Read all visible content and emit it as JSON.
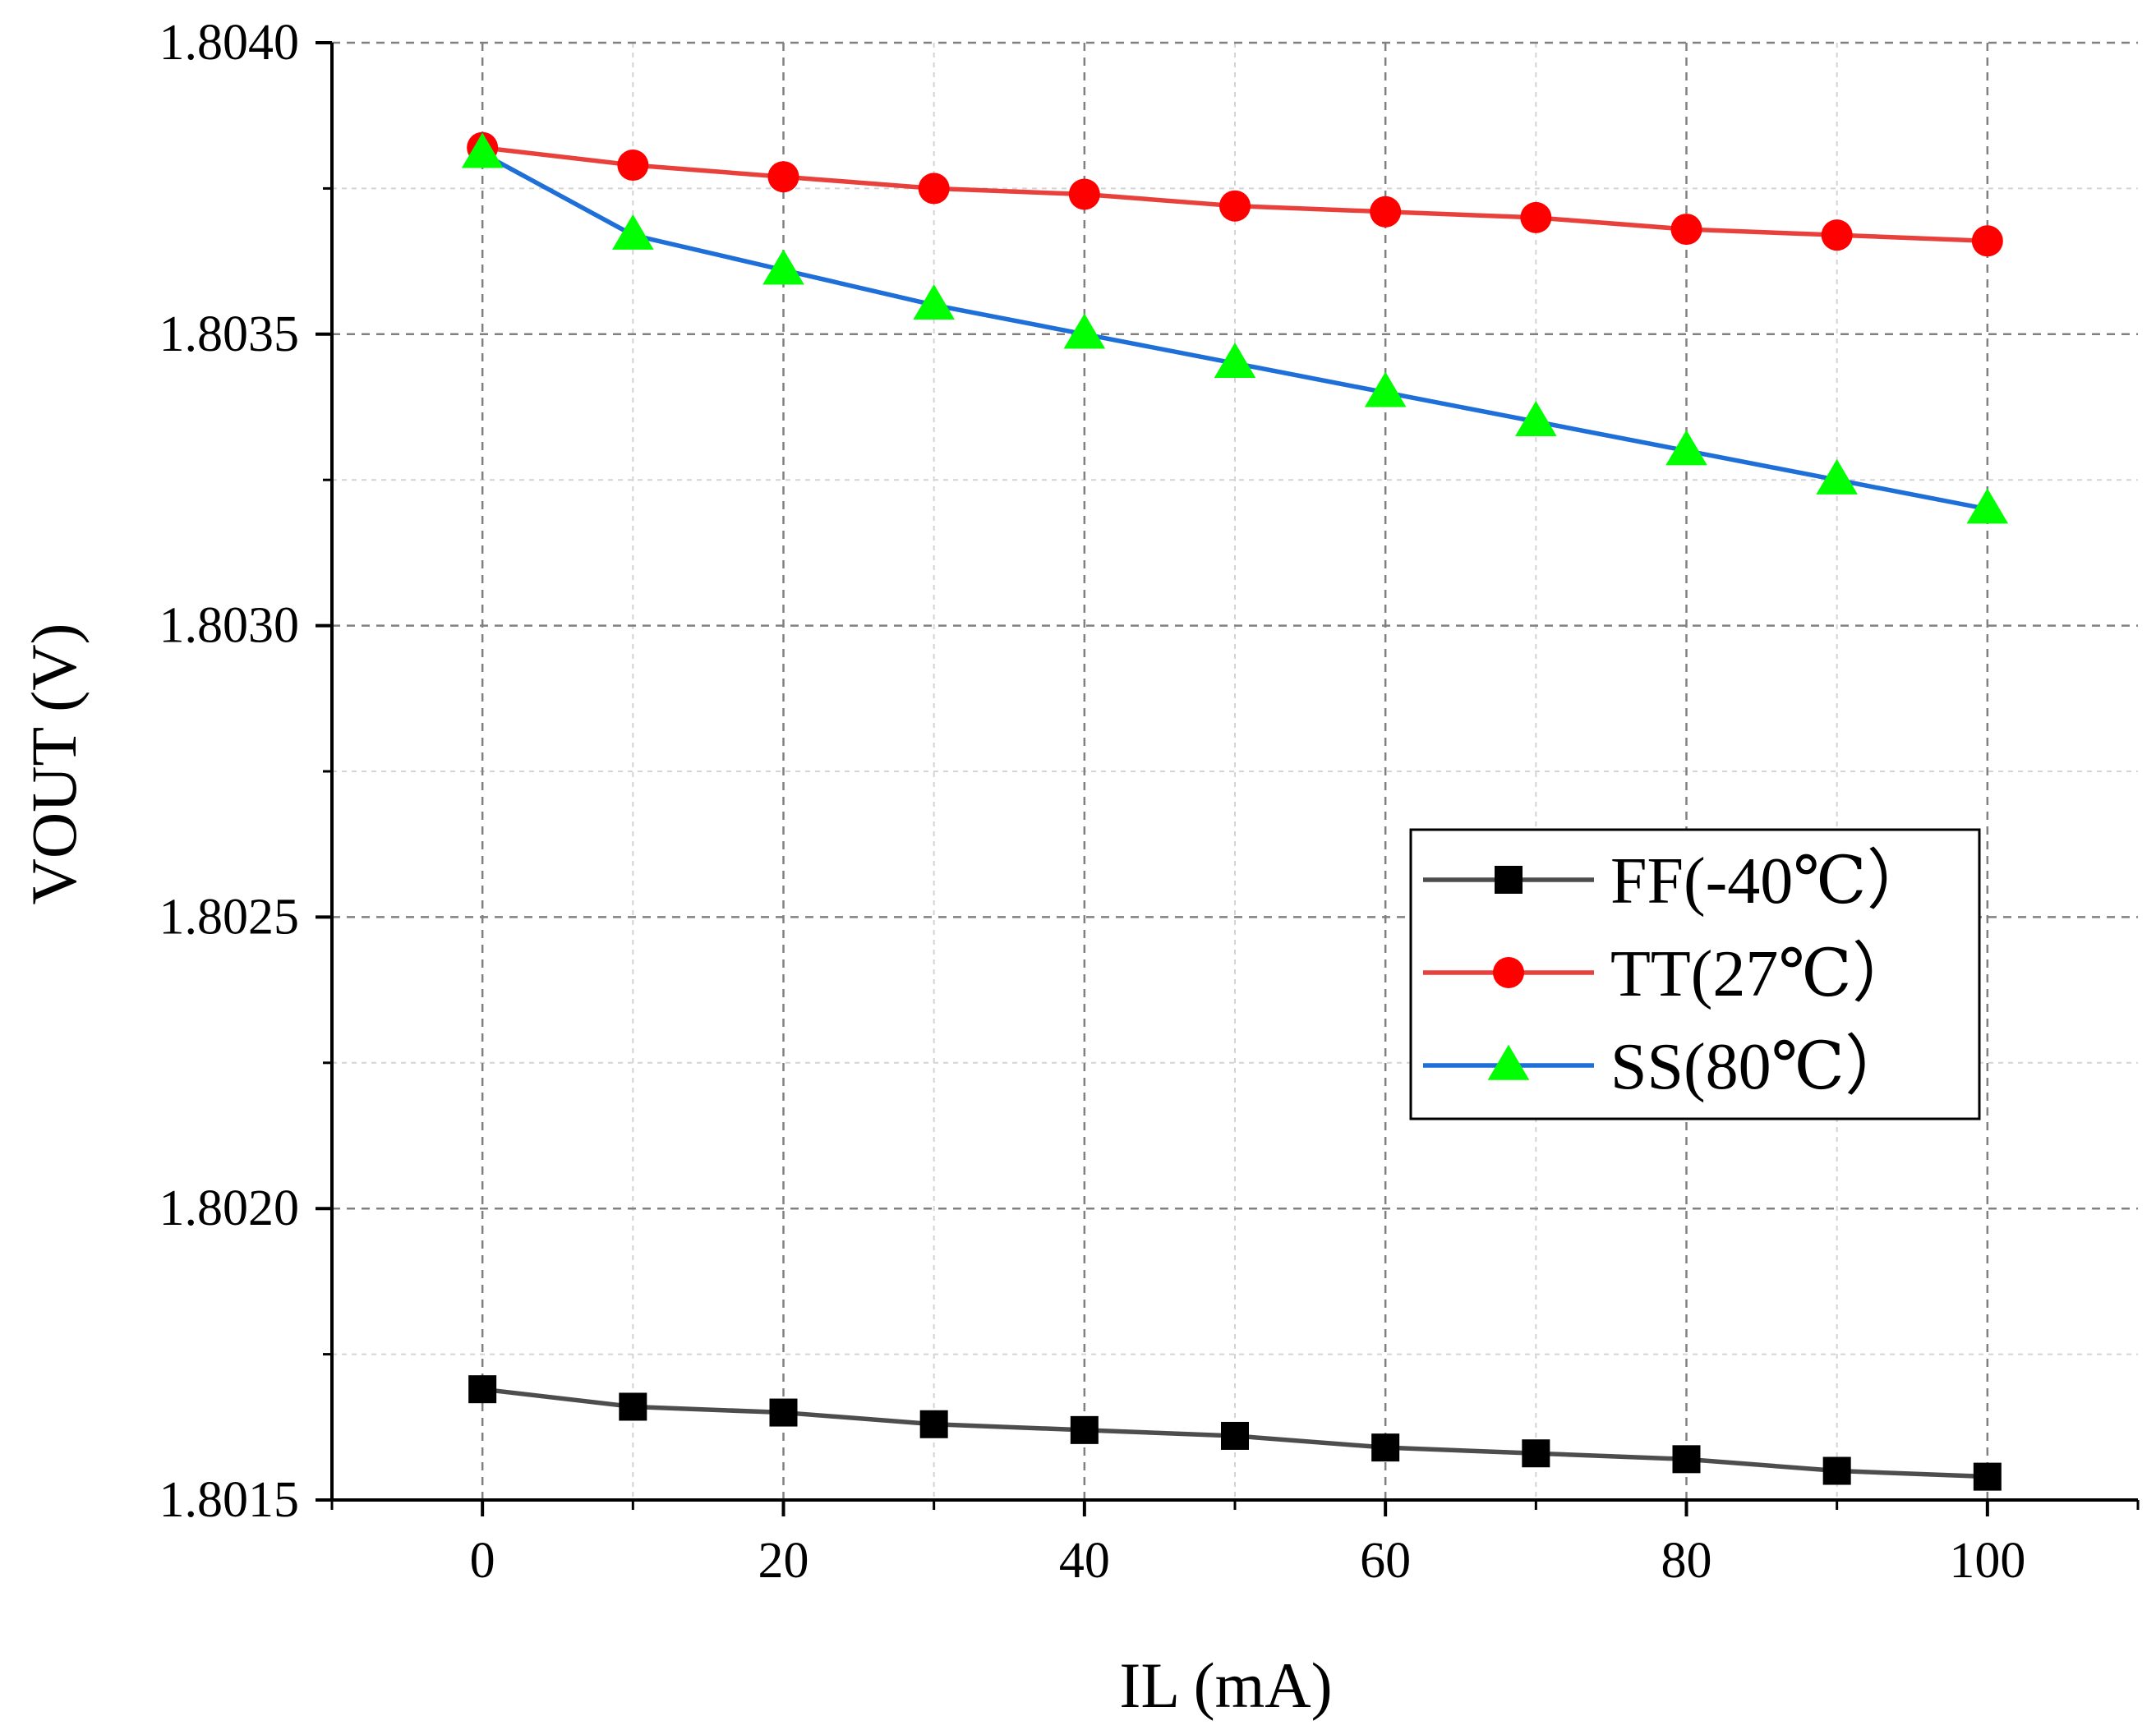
{
  "chart_data": {
    "type": "line",
    "title": "",
    "xlabel": "IL (mA)",
    "ylabel": "VOUT (V)",
    "xlim": [
      -10,
      110
    ],
    "ylim": [
      1.8015,
      1.804
    ],
    "xticks": [
      0,
      20,
      40,
      60,
      80,
      100
    ],
    "xtick_labels": [
      "0",
      "20",
      "40",
      "60",
      "80",
      "100"
    ],
    "yticks": [
      1.8015,
      1.802,
      1.8025,
      1.803,
      1.8035,
      1.804
    ],
    "ytick_labels": [
      "1.8015",
      "1.8020",
      "1.8025",
      "1.8030",
      "1.8035",
      "1.8040"
    ],
    "grid": true,
    "legend_position": "center-right",
    "x": [
      0,
      10,
      20,
      30,
      40,
      50,
      60,
      70,
      80,
      90,
      100
    ],
    "series": [
      {
        "name": "FF(-40℃）",
        "line_color": "#4d4d4d",
        "marker": "square",
        "marker_color": "#000000",
        "values": [
          1.80169,
          1.80166,
          1.80165,
          1.80163,
          1.80162,
          1.80161,
          1.80159,
          1.80158,
          1.80157,
          1.80155,
          1.80154
        ]
      },
      {
        "name": "TT(27℃）",
        "line_color": "#e8403a",
        "marker": "circle",
        "marker_color": "#ff0000",
        "values": [
          1.80382,
          1.80379,
          1.80377,
          1.80375,
          1.80374,
          1.80372,
          1.80371,
          1.8037,
          1.80368,
          1.80367,
          1.80366
        ]
      },
      {
        "name": "SS(80℃）",
        "line_color": "#1f6fd8",
        "marker": "triangle",
        "marker_color": "#00ff00",
        "values": [
          1.80381,
          1.80367,
          1.80361,
          1.80355,
          1.8035,
          1.80345,
          1.8034,
          1.80335,
          1.8033,
          1.80325,
          1.8032
        ]
      }
    ]
  }
}
